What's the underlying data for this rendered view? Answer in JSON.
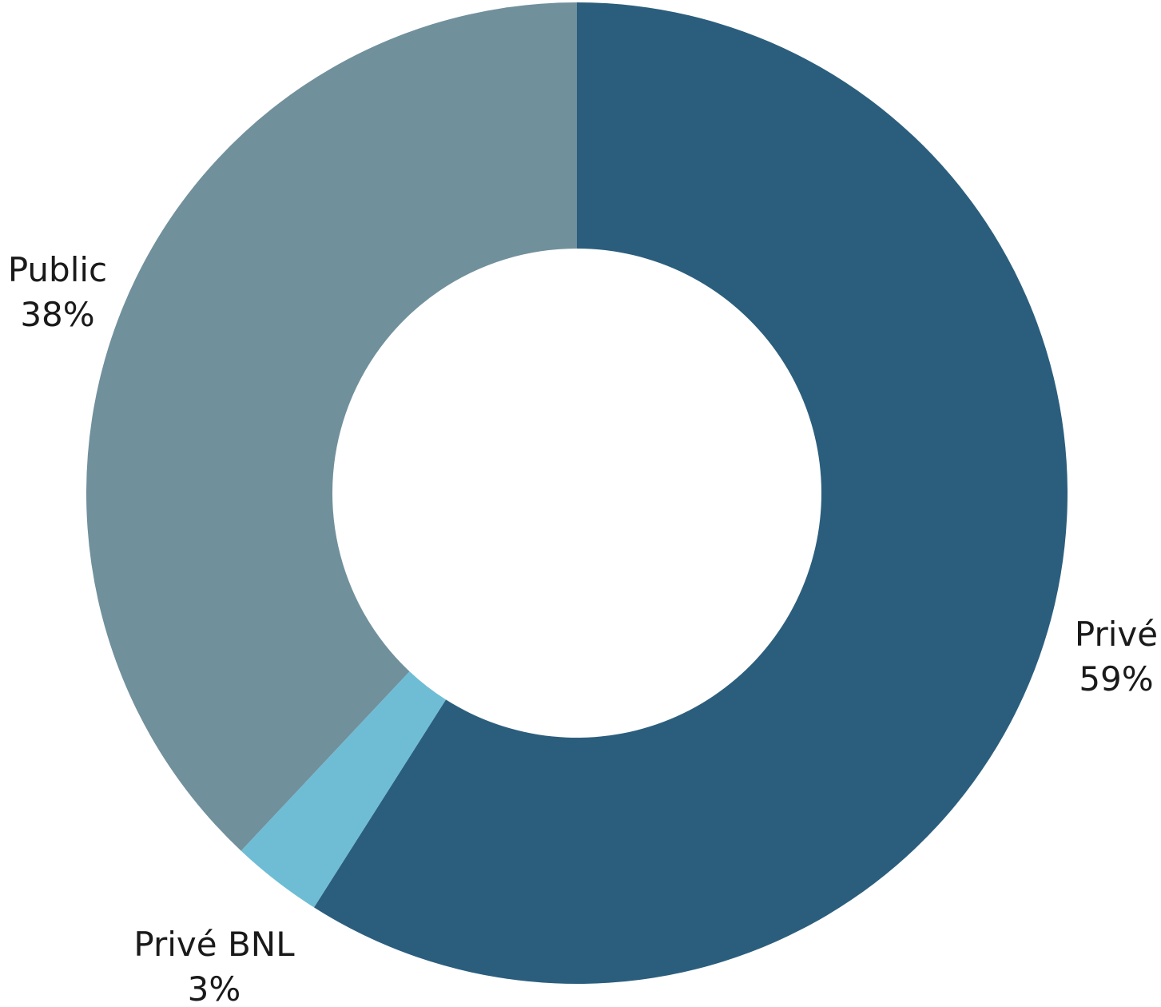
{
  "chart_data": {
    "type": "pie",
    "donut": true,
    "slices": [
      {
        "name": "Privé",
        "value": 59,
        "label": "59%",
        "color": "#2b5e7d"
      },
      {
        "name": "Privé BNL",
        "value": 3,
        "label": "3%",
        "color": "#6fbdd5"
      },
      {
        "name": "Public",
        "value": 38,
        "label": "38%",
        "color": "#70909c"
      }
    ],
    "start_angle_deg": 0,
    "direction": "clockwise"
  }
}
